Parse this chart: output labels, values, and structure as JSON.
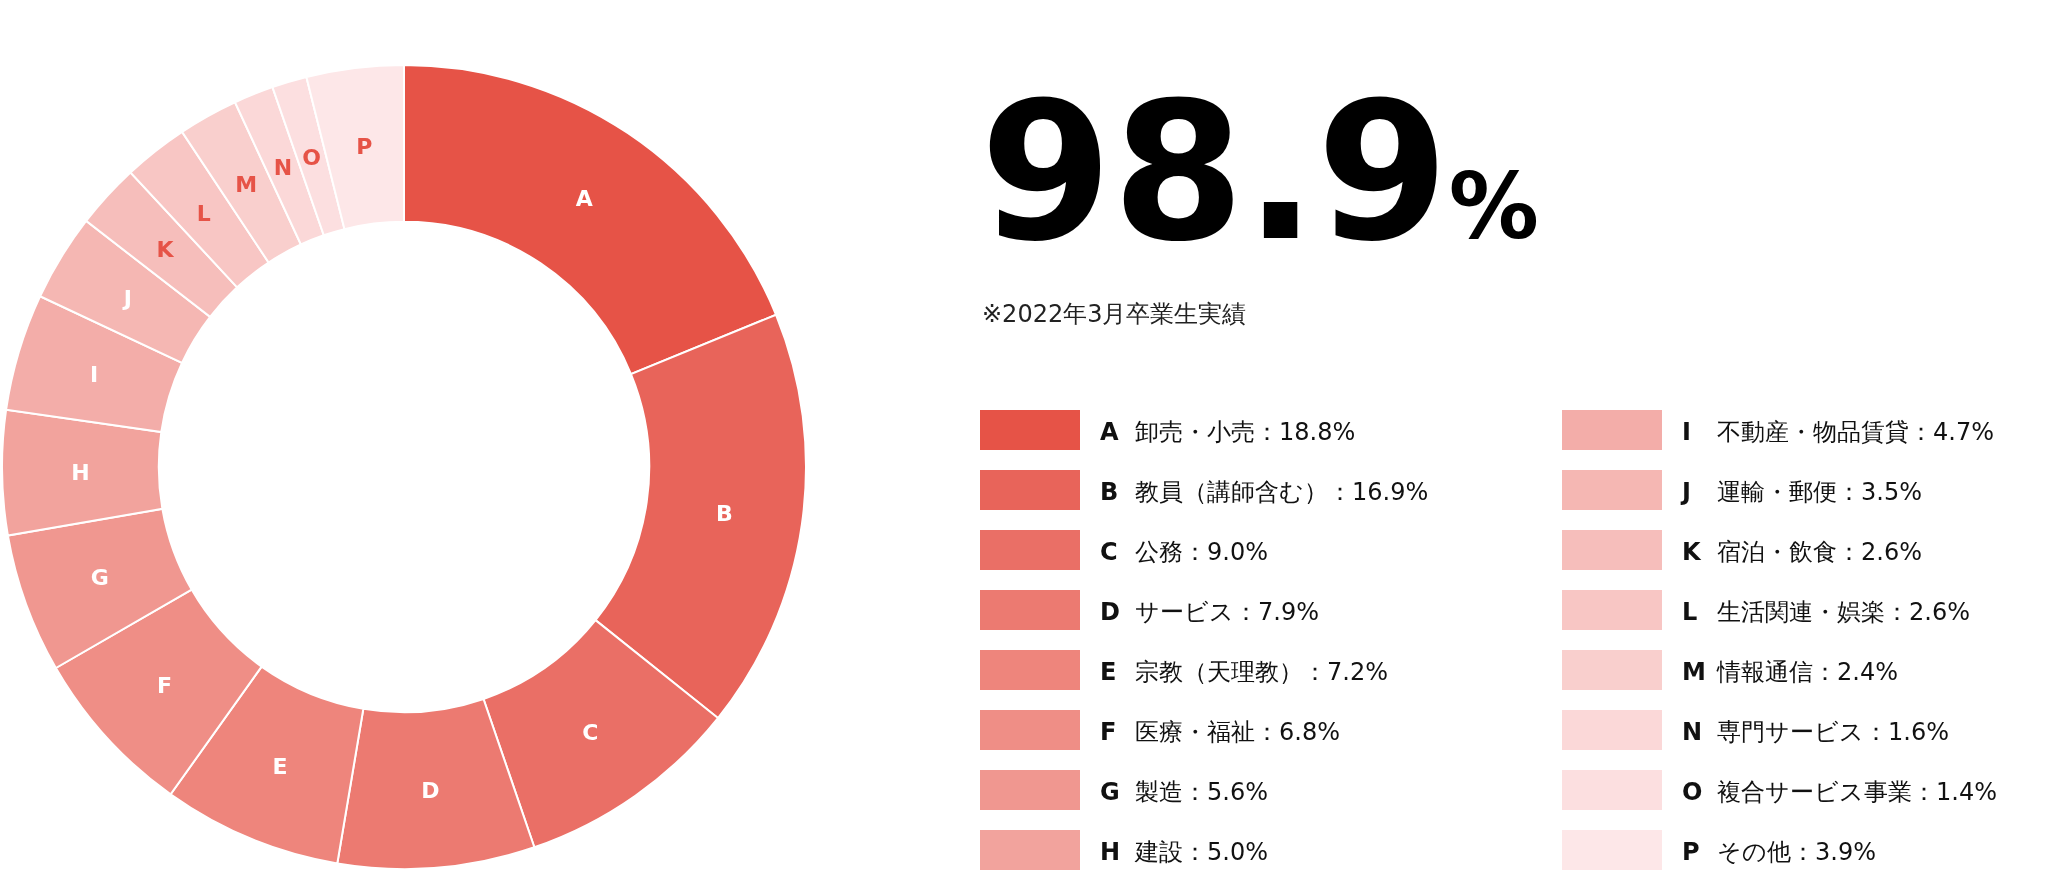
{
  "chart_data": {
    "type": "donut",
    "title": "98.9%",
    "subtitle": "※2022年3月卒業生実績",
    "categories": [
      "卸売・小売",
      "教員（講師含む）",
      "公務",
      "サービス",
      "宗教（天理教）",
      "医療・福祉",
      "製造",
      "建設",
      "不動産・物品賃貸",
      "運輸・郵便",
      "宿泊・飲食",
      "生活関連・娯楽",
      "情報通信",
      "専門サービス",
      "複合サービス事業",
      "その他"
    ],
    "values": [
      18.8,
      16.9,
      9.0,
      7.9,
      7.2,
      6.8,
      5.6,
      5.0,
      4.7,
      3.5,
      2.6,
      2.6,
      2.4,
      1.6,
      1.4,
      3.9
    ],
    "value_labels": [
      "18.8%",
      "16.9%",
      "9.0%",
      "7.9%",
      "7.2%",
      "6.8%",
      "5.6%",
      "5.0%",
      "4.7%",
      "3.5%",
      "2.6%",
      "2.6%",
      "2.4%",
      "1.6%",
      "1.4%",
      "3.9%"
    ],
    "colors": [
      "#e65347",
      "#e8645a",
      "#ea6f66",
      "#ec7a71",
      "#ee857c",
      "#ef8e86",
      "#f09790",
      "#f2a39d",
      "#f3ada9",
      "#f5b7b3",
      "#f6bebb",
      "#f8c6c4",
      "#f9cfcd",
      "#fbd8d8",
      "#fcdfe0",
      "#fde7e8"
    ],
    "annotations": [
      {
        "text": "A",
        "x": "卸売・小売"
      },
      {
        "text": "B",
        "x": "教員（講師含む）"
      },
      {
        "text": "C",
        "x": "公務"
      },
      {
        "text": "D",
        "x": "サービス"
      },
      {
        "text": "E",
        "x": "宗教（天理教）"
      },
      {
        "text": "F",
        "x": "医療・福祉"
      },
      {
        "text": "G",
        "x": "製造"
      },
      {
        "text": "H",
        "x": "建設"
      },
      {
        "text": "I",
        "x": "不動産・物品賃貸"
      },
      {
        "text": "J",
        "x": "運輸・郵便"
      },
      {
        "text": "K",
        "x": "宿泊・飲食"
      },
      {
        "text": "L",
        "x": "生活関連・娯楽"
      },
      {
        "text": "M",
        "x": "情報通信"
      },
      {
        "text": "N",
        "x": "専門サービス"
      },
      {
        "text": "O",
        "x": "複合サービス事業"
      },
      {
        "text": "P",
        "x": "その他"
      }
    ],
    "legend": "right"
  }
}
